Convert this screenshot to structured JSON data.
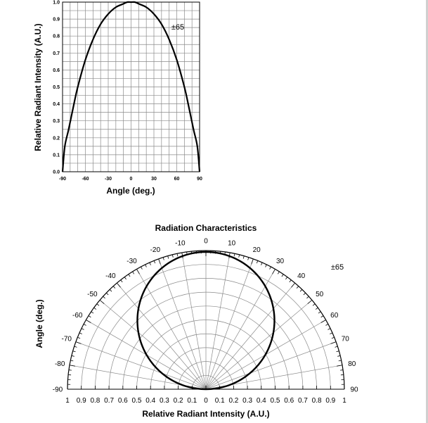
{
  "chart_data": [
    {
      "type": "line",
      "xlabel": "Angle (deg.)",
      "ylabel": "Relative Radiant Intensity (A.U.)",
      "xlim": [
        -90,
        90
      ],
      "ylim": [
        0,
        1.0
      ],
      "xticks": [
        "-90",
        "-60",
        "-30",
        "0",
        "30",
        "60",
        "90"
      ],
      "yticks": [
        "0.0",
        "0.1",
        "0.2",
        "0.3",
        "0.4",
        "0.5",
        "0.6",
        "0.7",
        "0.8",
        "0.9",
        "1.0"
      ],
      "grid": true,
      "annotation": "±65",
      "series": [
        {
          "x": [
            -90,
            -87,
            -82,
            -75,
            -70,
            -60,
            -50,
            -40,
            -30,
            -20,
            -10,
            -5,
            0,
            5,
            10,
            20,
            30,
            40,
            50,
            60,
            70,
            75,
            82,
            87,
            90
          ],
          "y": [
            0.0,
            0.15,
            0.25,
            0.4,
            0.5,
            0.66,
            0.78,
            0.87,
            0.93,
            0.97,
            0.99,
            1.0,
            1.0,
            1.0,
            0.99,
            0.97,
            0.93,
            0.87,
            0.78,
            0.66,
            0.5,
            0.4,
            0.25,
            0.15,
            0.0
          ]
        }
      ]
    },
    {
      "type": "polar",
      "title": "Radiation Characteristics",
      "xlabel": "Relative Radiant Intensity (A.U.)",
      "ylabel": "Angle (deg.)",
      "annotation": "±65",
      "left_angles": [
        "-90",
        "-80",
        "-70",
        "-60",
        "-50",
        "-40",
        "-30",
        "-20",
        "-10"
      ],
      "top_angle": "0",
      "right_angles": [
        "10",
        "20",
        "30",
        "40",
        "50",
        "60",
        "70",
        "80",
        "90"
      ],
      "radial_labels_left": [
        "1",
        "0.9",
        "0.8",
        "0.7",
        "0.6",
        "0.5",
        "0.4",
        "0.3",
        "0.2",
        "0.1"
      ],
      "radial_center": "0",
      "radial_labels_right": [
        "0.1",
        "0.2",
        "0.3",
        "0.4",
        "0.5",
        "0.6",
        "0.7",
        "0.8",
        "0.9",
        "1"
      ],
      "rmax": 1.0,
      "pattern": "cos(theta)"
    }
  ]
}
